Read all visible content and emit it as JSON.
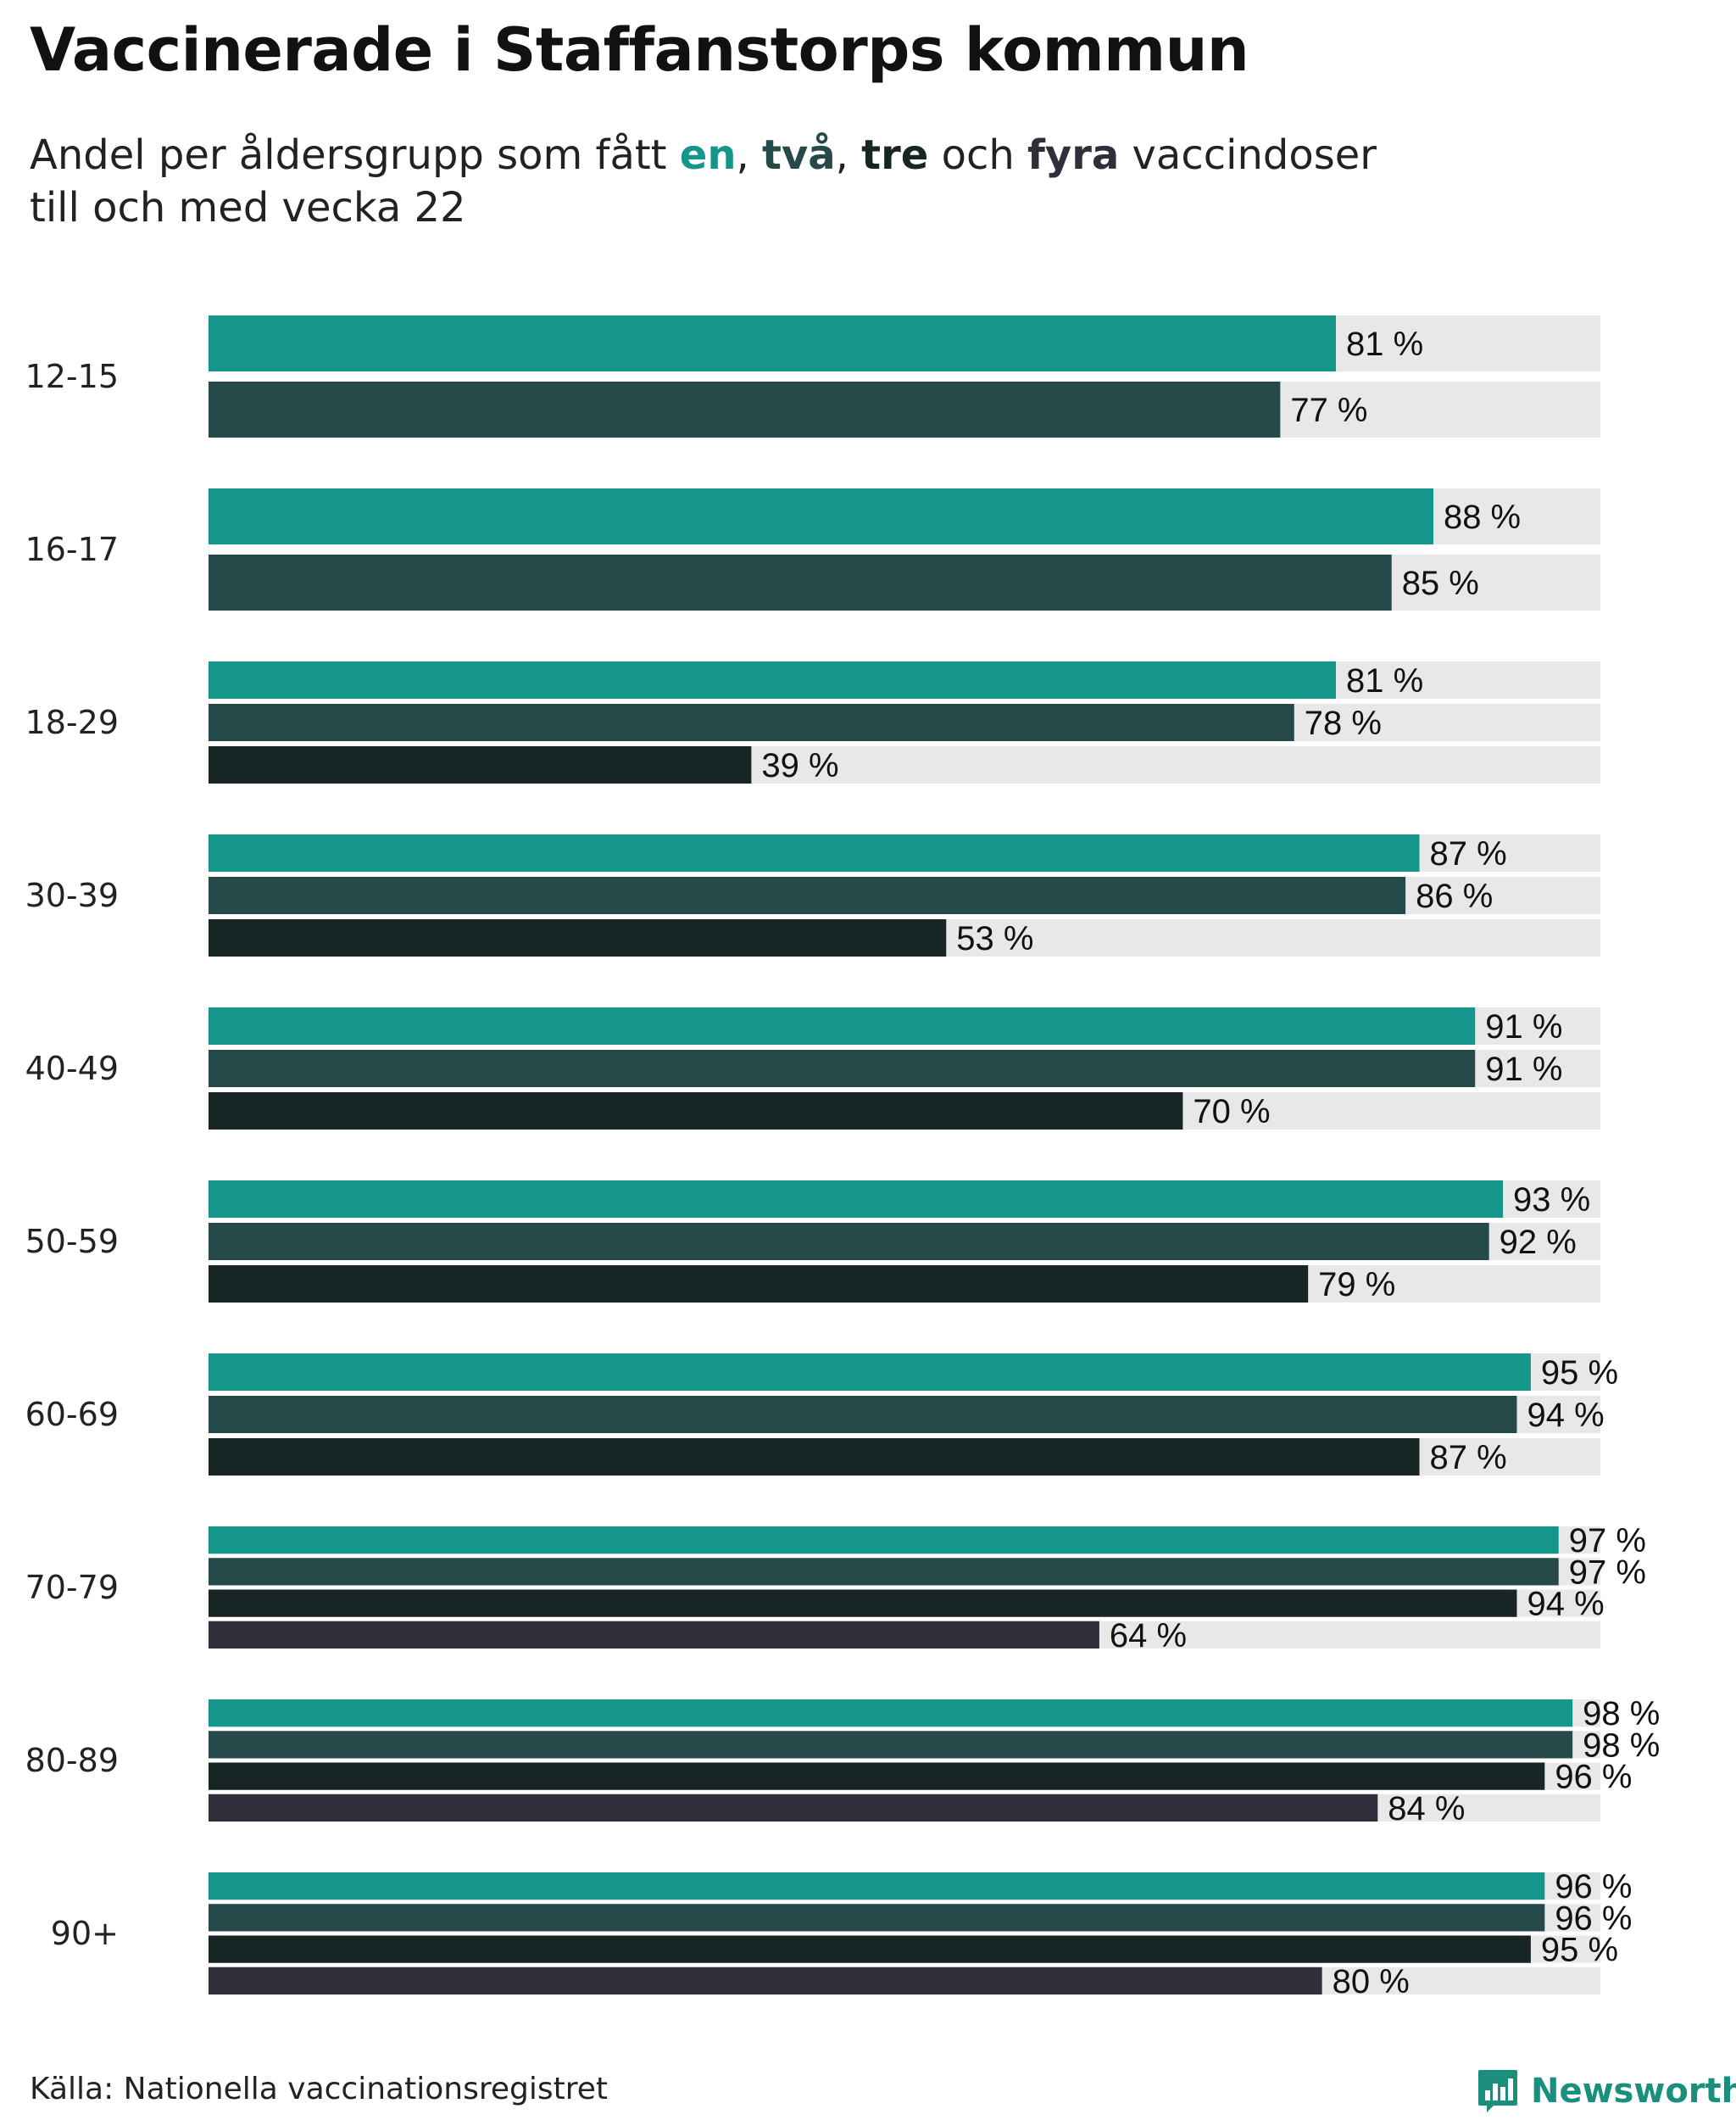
{
  "title": "Vaccinerade i Staffanstorps kommun",
  "subtitle": {
    "prefix": "Andel per åldersgrupp som fått ",
    "w1": "en",
    "sep1": ", ",
    "w2": "två",
    "sep2": ", ",
    "w3": "tre",
    "mid": " och ",
    "w4": "fyra",
    "suffix": " vaccindoser",
    "line2": "till och med vecka 22"
  },
  "colors": {
    "dose1": "#14968a",
    "dose2": "#264a49",
    "dose3": "#172625",
    "dose4": "#2f2e3a",
    "track": "#e8e8e8"
  },
  "chart_data": {
    "type": "bar",
    "orientation": "horizontal",
    "value_suffix": " %",
    "xlim": [
      0,
      100
    ],
    "categories": [
      "12-15",
      "16-17",
      "18-29",
      "30-39",
      "40-49",
      "50-59",
      "60-69",
      "70-79",
      "80-89",
      "90+"
    ],
    "series": [
      {
        "name": "en",
        "values": [
          81,
          88,
          81,
          87,
          91,
          93,
          95,
          97,
          98,
          96
        ]
      },
      {
        "name": "två",
        "values": [
          77,
          85,
          78,
          86,
          91,
          92,
          94,
          97,
          98,
          96
        ]
      },
      {
        "name": "tre",
        "values": [
          null,
          null,
          39,
          53,
          70,
          79,
          87,
          94,
          96,
          95
        ]
      },
      {
        "name": "fyra",
        "values": [
          null,
          null,
          null,
          null,
          null,
          null,
          null,
          64,
          84,
          80
        ]
      }
    ]
  },
  "source": "Källa: Nationella vaccinationsregistret",
  "brand": {
    "name": "Newsworthy",
    "icon": "newsworthy-logo-icon"
  }
}
